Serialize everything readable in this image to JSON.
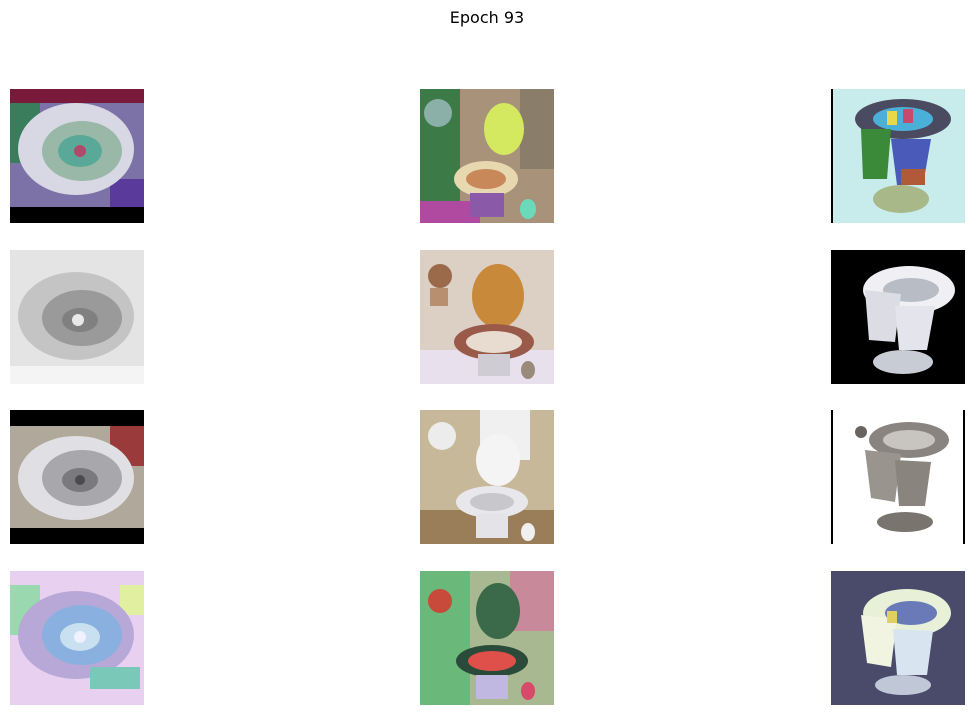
{
  "figure": {
    "title": "Epoch 93"
  },
  "grid": {
    "rows": 4,
    "cols": 3,
    "tiles": [
      {
        "row": 0,
        "col": 0,
        "style": "segmentation",
        "subject": "toilet-top-view"
      },
      {
        "row": 0,
        "col": 1,
        "style": "segmentation",
        "subject": "toilet-bathroom"
      },
      {
        "row": 0,
        "col": 2,
        "style": "segmentation",
        "subject": "toilet-steel"
      },
      {
        "row": 1,
        "col": 0,
        "style": "grayscale",
        "subject": "toilet-top-view"
      },
      {
        "row": 1,
        "col": 1,
        "style": "generated",
        "subject": "toilet-bathroom"
      },
      {
        "row": 1,
        "col": 2,
        "style": "generated-dark",
        "subject": "toilet-steel"
      },
      {
        "row": 2,
        "col": 0,
        "style": "photo",
        "subject": "toilet-top-view"
      },
      {
        "row": 2,
        "col": 1,
        "style": "photo",
        "subject": "toilet-bathroom"
      },
      {
        "row": 2,
        "col": 2,
        "style": "photo",
        "subject": "toilet-steel"
      },
      {
        "row": 3,
        "col": 0,
        "style": "feature-map",
        "subject": "toilet-top-view"
      },
      {
        "row": 3,
        "col": 1,
        "style": "feature-map",
        "subject": "toilet-bathroom"
      },
      {
        "row": 3,
        "col": 2,
        "style": "feature-map",
        "subject": "toilet-steel"
      }
    ]
  }
}
